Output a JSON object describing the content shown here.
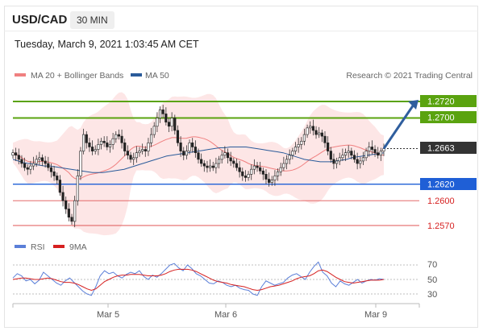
{
  "header": {
    "pair": "USD/CAD",
    "timeframe": "30 MIN",
    "datetime": "Tuesday, March 9, 2021 1:03:45 AM CET"
  },
  "legend": {
    "ma20": "MA 20 + Bollinger Bands",
    "ma50": "MA 50",
    "copyright": "Research © 2021 Trading Central",
    "rsi": "RSI",
    "ma9": "9MA"
  },
  "colors": {
    "ma20": "#f08080",
    "ma50": "#2a5b9a",
    "bands_fill": "#fde2e2",
    "resistance": "#5aa30f",
    "support": "#1f5fd6",
    "support_weak": "#e05555",
    "arrow": "#2f5e9e",
    "rsi": "#5b7fd8",
    "rsi_ma": "#d62020"
  },
  "chart_data": [
    {
      "type": "candlestick",
      "title": "USD/CAD",
      "x_ticks": [
        "Mar 5",
        "Mar 6",
        "Mar 9"
      ],
      "y_range": [
        1.2545,
        1.2745
      ],
      "levels": [
        {
          "value": 1.272,
          "label": "1.2720",
          "kind": "resistance"
        },
        {
          "value": 1.27,
          "label": "1.2700",
          "kind": "resistance"
        },
        {
          "value": 1.2663,
          "label": "1.2663",
          "kind": "current"
        },
        {
          "value": 1.262,
          "label": "1.2620",
          "kind": "support"
        },
        {
          "value": 1.26,
          "label": "1.2600",
          "kind": "support_weak"
        },
        {
          "value": 1.257,
          "label": "1.2570",
          "kind": "support_weak"
        }
      ],
      "close_series": [
        1.2658,
        1.2655,
        1.265,
        1.2645,
        1.264,
        1.2638,
        1.2642,
        1.2645,
        1.265,
        1.2652,
        1.2648,
        1.2645,
        1.264,
        1.2635,
        1.263,
        1.2625,
        1.261,
        1.26,
        1.259,
        1.258,
        1.2575,
        1.26,
        1.263,
        1.266,
        1.268,
        1.267,
        1.2665,
        1.266,
        1.2662,
        1.2668,
        1.2672,
        1.267,
        1.2665,
        1.2668,
        1.2675,
        1.268,
        1.2678,
        1.267,
        1.266,
        1.2655,
        1.265,
        1.2652,
        1.2658,
        1.266,
        1.2662,
        1.266,
        1.267,
        1.268,
        1.269,
        1.27,
        1.271,
        1.2705,
        1.2695,
        1.269,
        1.27,
        1.2685,
        1.267,
        1.266,
        1.2655,
        1.266,
        1.267,
        1.2665,
        1.2658,
        1.265,
        1.2645,
        1.2642,
        1.264,
        1.2642,
        1.264,
        1.2645,
        1.265,
        1.2655,
        1.2658,
        1.2652,
        1.2648,
        1.2645,
        1.264,
        1.2635,
        1.263,
        1.2628,
        1.2632,
        1.2638,
        1.2642,
        1.264,
        1.2636,
        1.2632,
        1.2626,
        1.2622,
        1.2625,
        1.263,
        1.2635,
        1.264,
        1.2645,
        1.265,
        1.2655,
        1.266,
        1.2665,
        1.2668,
        1.2672,
        1.268,
        1.2688,
        1.269,
        1.2685,
        1.268,
        1.2682,
        1.2678,
        1.267,
        1.266,
        1.265,
        1.2645,
        1.2648,
        1.2652,
        1.2655,
        1.2658,
        1.266,
        1.2655,
        1.265,
        1.2645,
        1.2648,
        1.2652,
        1.266,
        1.2665,
        1.2662,
        1.2658,
        1.2655,
        1.266,
        1.2663
      ],
      "ma50_series": [
        1.265,
        1.2648,
        1.2646,
        1.2645,
        1.2644,
        1.2643,
        1.2642,
        1.2642,
        1.2641,
        1.264,
        1.2639,
        1.2638,
        1.2637,
        1.2636,
        1.2635,
        1.2634,
        1.2634,
        1.2634,
        1.2635,
        1.2636,
        1.2637,
        1.2638,
        1.264,
        1.2642,
        1.2644,
        1.2646,
        1.2648,
        1.265,
        1.2652,
        1.2654,
        1.2655,
        1.2656,
        1.2657,
        1.2658,
        1.2659,
        1.266,
        1.2661,
        1.2662,
        1.2663,
        1.2664,
        1.2664,
        1.2665,
        1.2665,
        1.2665,
        1.2665,
        1.2664,
        1.2663,
        1.2662,
        1.2661,
        1.266,
        1.2659,
        1.2658,
        1.2656,
        1.2654,
        1.2652,
        1.265,
        1.2649,
        1.2648,
        1.2647,
        1.2647,
        1.2647,
        1.2648,
        1.2649,
        1.265,
        1.2652,
        1.2653,
        1.2654,
        1.2655,
        1.2656,
        1.2657,
        1.2658
      ],
      "arrow": {
        "from_value": 1.2663,
        "to_value": 1.2722
      }
    },
    {
      "type": "line",
      "title": "RSI",
      "y_ticks": [
        70,
        50,
        30
      ],
      "y_range": [
        20,
        80
      ],
      "series": [
        {
          "name": "RSI",
          "values": [
            52,
            58,
            55,
            48,
            50,
            44,
            49,
            60,
            55,
            50,
            45,
            42,
            48,
            52,
            46,
            40,
            34,
            30,
            28,
            40,
            55,
            62,
            58,
            60,
            55,
            52,
            57,
            60,
            58,
            62,
            54,
            50,
            56,
            53,
            58,
            64,
            70,
            72,
            66,
            62,
            70,
            65,
            58,
            55,
            50,
            45,
            44,
            48,
            46,
            42,
            40,
            42,
            38,
            36,
            35,
            30,
            28,
            40,
            48,
            45,
            42,
            44,
            46,
            52,
            56,
            58,
            54,
            50,
            60,
            68,
            74,
            60,
            55,
            45,
            40,
            48,
            44,
            42,
            46,
            50,
            45,
            48,
            50,
            49,
            51,
            50
          ]
        },
        {
          "name": "9MA",
          "values": [
            50,
            51,
            52,
            52,
            51,
            50,
            50,
            51,
            52,
            51,
            49,
            47,
            46,
            46,
            45,
            43,
            40,
            37,
            35,
            37,
            42,
            47,
            50,
            53,
            55,
            56,
            56,
            57,
            57,
            57,
            56,
            55,
            55,
            55,
            56,
            58,
            61,
            63,
            64,
            64,
            64,
            63,
            61,
            58,
            55,
            52,
            49,
            47,
            46,
            45,
            43,
            42,
            41,
            40,
            38,
            36,
            35,
            36,
            38,
            40,
            41,
            42,
            44,
            46,
            48,
            51,
            53,
            54,
            55,
            58,
            62,
            63,
            61,
            57,
            53,
            50,
            47,
            46,
            45,
            46,
            47,
            48,
            49,
            49,
            49,
            50
          ]
        }
      ]
    }
  ],
  "rsi_ticks": {
    "t70": "70",
    "t50": "50",
    "t30": "30"
  },
  "x_ticks": {
    "t1": "Mar 5",
    "t2": "Mar 6",
    "t3": "Mar 9"
  },
  "level_labels": {
    "l1": "1.2720",
    "l2": "1.2700",
    "l3": "1.2663",
    "l4": "1.2620",
    "l5": "1.2600",
    "l6": "1.2570"
  }
}
